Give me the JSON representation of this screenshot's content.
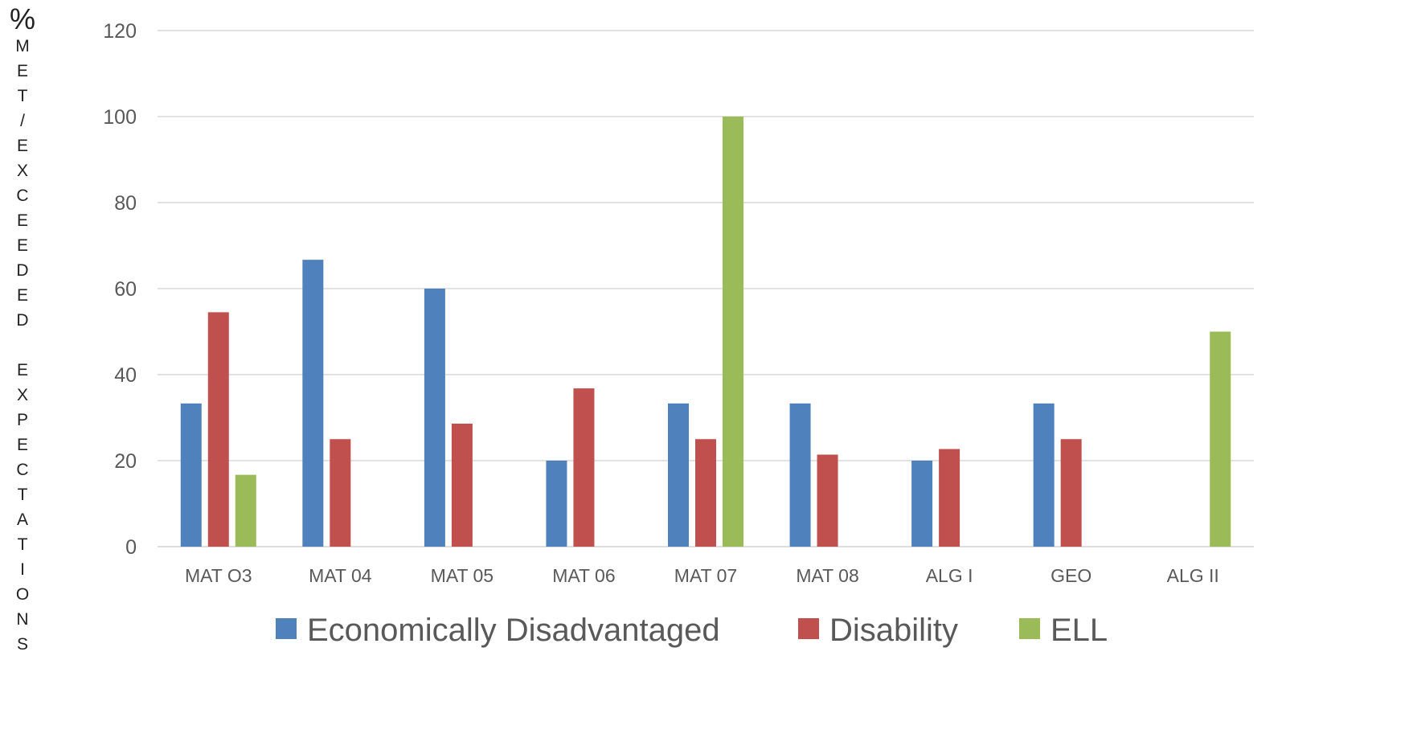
{
  "chart_data": {
    "type": "bar",
    "ylabel_symbol": "%",
    "ylabel": "MET/EXCEEDED EXPECTATIONS",
    "xlabel": "",
    "title": "",
    "categories": [
      "MAT O3",
      "MAT 04",
      "MAT 05",
      "MAT 06",
      "MAT 07",
      "MAT 08",
      "ALG I",
      "GEO",
      "ALG II"
    ],
    "series": [
      {
        "name": "Economically Disadvantaged",
        "color": "#4F81BD",
        "values": [
          33.3,
          66.7,
          60,
          20,
          33.3,
          33.3,
          20,
          33.3,
          null
        ]
      },
      {
        "name": "Disability",
        "color": "#C0504D",
        "values": [
          54.5,
          25,
          28.6,
          36.8,
          25,
          21.4,
          22.7,
          25,
          null
        ]
      },
      {
        "name": "ELL",
        "color": "#9BBB59",
        "values": [
          16.7,
          null,
          null,
          null,
          100,
          null,
          null,
          null,
          50
        ]
      }
    ],
    "ylim": [
      0,
      120
    ],
    "yticks": [
      0,
      20,
      40,
      60,
      80,
      100,
      120
    ],
    "grid": true,
    "legend": "bottom"
  }
}
